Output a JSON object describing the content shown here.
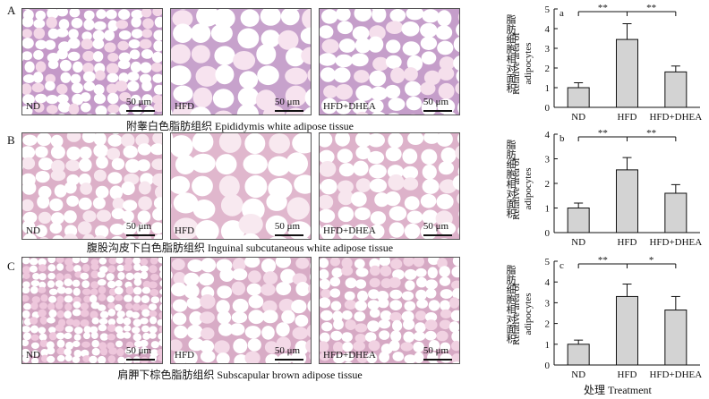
{
  "rows": [
    {
      "letter": "A",
      "caption": "附睾白色脂肪组织 Epididymis white adipose tissue",
      "images": [
        {
          "label": "ND",
          "scale": "50 μm",
          "tone": "#f3d7e7",
          "membrane": "#9a5aa8",
          "cell": 14
        },
        {
          "label": "HFD",
          "scale": "50 μm",
          "tone": "#f7e3ef",
          "membrane": "#a06aae",
          "cell": 26
        },
        {
          "label": "HFD+DHEA",
          "scale": "50 μm",
          "tone": "#f5dfec",
          "membrane": "#9d62ab",
          "cell": 20
        }
      ]
    },
    {
      "letter": "B",
      "caption": "腹股沟皮下白色脂肪组织 Inguinal subcutaneous white adipose tissue",
      "images": [
        {
          "label": "ND",
          "scale": "50 μm",
          "tone": "#f7e6ee",
          "membrane": "#c783a8",
          "cell": 17
        },
        {
          "label": "HFD",
          "scale": "50 μm",
          "tone": "#f8e9f0",
          "membrane": "#cd8fb1",
          "cell": 28
        },
        {
          "label": "HFD+DHEA",
          "scale": "50 μm",
          "tone": "#f7e6ee",
          "membrane": "#c987ab",
          "cell": 20
        }
      ]
    },
    {
      "letter": "C",
      "caption": "肩胛下棕色脂肪组织 Subscapular brown adipose tissue",
      "images": [
        {
          "label": "ND",
          "scale": "50 μm",
          "tone": "#eec7dc",
          "membrane": "#b56f9b",
          "cell": 10
        },
        {
          "label": "HFD",
          "scale": "50 μm",
          "tone": "#f3d9e7",
          "membrane": "#bf7ba4",
          "cell": 18
        },
        {
          "label": "HFD+DHEA",
          "scale": "50 μm",
          "tone": "#f1d2e2",
          "membrane": "#bb77a1",
          "cell": 14
        }
      ]
    }
  ],
  "ylabel_cn": "脂肪细胞相对面积",
  "ylabel_en_1": "Relative area of",
  "ylabel_en_2": "adipocytes",
  "xtitle": "处理 Treatment",
  "chart_data": [
    {
      "type": "bar",
      "panel": "a",
      "categories": [
        "ND",
        "HFD",
        "HFD+DHEA"
      ],
      "values": [
        1.0,
        3.45,
        1.8
      ],
      "errors": [
        0.25,
        0.8,
        0.3
      ],
      "ylim": [
        0,
        5
      ],
      "yticks": [
        "0",
        "1",
        "2",
        "3",
        "4",
        "5"
      ],
      "significance": [
        {
          "from": 0,
          "to": 1,
          "label": "**"
        },
        {
          "from": 1,
          "to": 2,
          "label": "**"
        }
      ],
      "bar_color": "#d3d3d3"
    },
    {
      "type": "bar",
      "panel": "b",
      "categories": [
        "ND",
        "HFD",
        "HFD+DHEA"
      ],
      "values": [
        1.0,
        2.55,
        1.6
      ],
      "errors": [
        0.2,
        0.5,
        0.35
      ],
      "ylim": [
        0,
        4
      ],
      "yticks": [
        "0",
        "1",
        "2",
        "3",
        "4"
      ],
      "significance": [
        {
          "from": 0,
          "to": 1,
          "label": "**"
        },
        {
          "from": 1,
          "to": 2,
          "label": "**"
        }
      ],
      "bar_color": "#d3d3d3"
    },
    {
      "type": "bar",
      "panel": "c",
      "categories": [
        "ND",
        "HFD",
        "HFD+DHEA"
      ],
      "values": [
        1.0,
        3.3,
        2.65
      ],
      "errors": [
        0.2,
        0.6,
        0.65
      ],
      "ylim": [
        0,
        5
      ],
      "yticks": [
        "0",
        "1",
        "2",
        "3",
        "4",
        "5"
      ],
      "significance": [
        {
          "from": 0,
          "to": 1,
          "label": "**"
        },
        {
          "from": 1,
          "to": 2,
          "label": "*"
        }
      ],
      "bar_color": "#d3d3d3"
    }
  ]
}
